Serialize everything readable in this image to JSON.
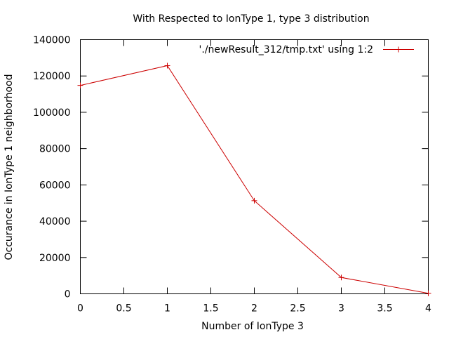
{
  "chart_data": {
    "type": "line",
    "title": "With Respected to IonType 1, type 3 distribution",
    "xlabel": "Number of IonType 3",
    "ylabel": "Occurance in IonType 1 neighborhood",
    "xlim": [
      0,
      4
    ],
    "ylim": [
      0,
      140000
    ],
    "xticks": [
      0,
      0.5,
      1,
      1.5,
      2,
      2.5,
      3,
      3.5,
      4
    ],
    "yticks": [
      0,
      20000,
      40000,
      60000,
      80000,
      100000,
      120000,
      140000
    ],
    "grid": false,
    "legend_position": "top-right",
    "series": [
      {
        "name": "'./newResult_312/tmp.txt' using 1:2",
        "color": "#cc0000",
        "marker": "plus",
        "x": [
          0,
          1,
          2,
          3,
          4
        ],
        "y": [
          114800,
          125700,
          51300,
          9000,
          300
        ]
      }
    ]
  }
}
